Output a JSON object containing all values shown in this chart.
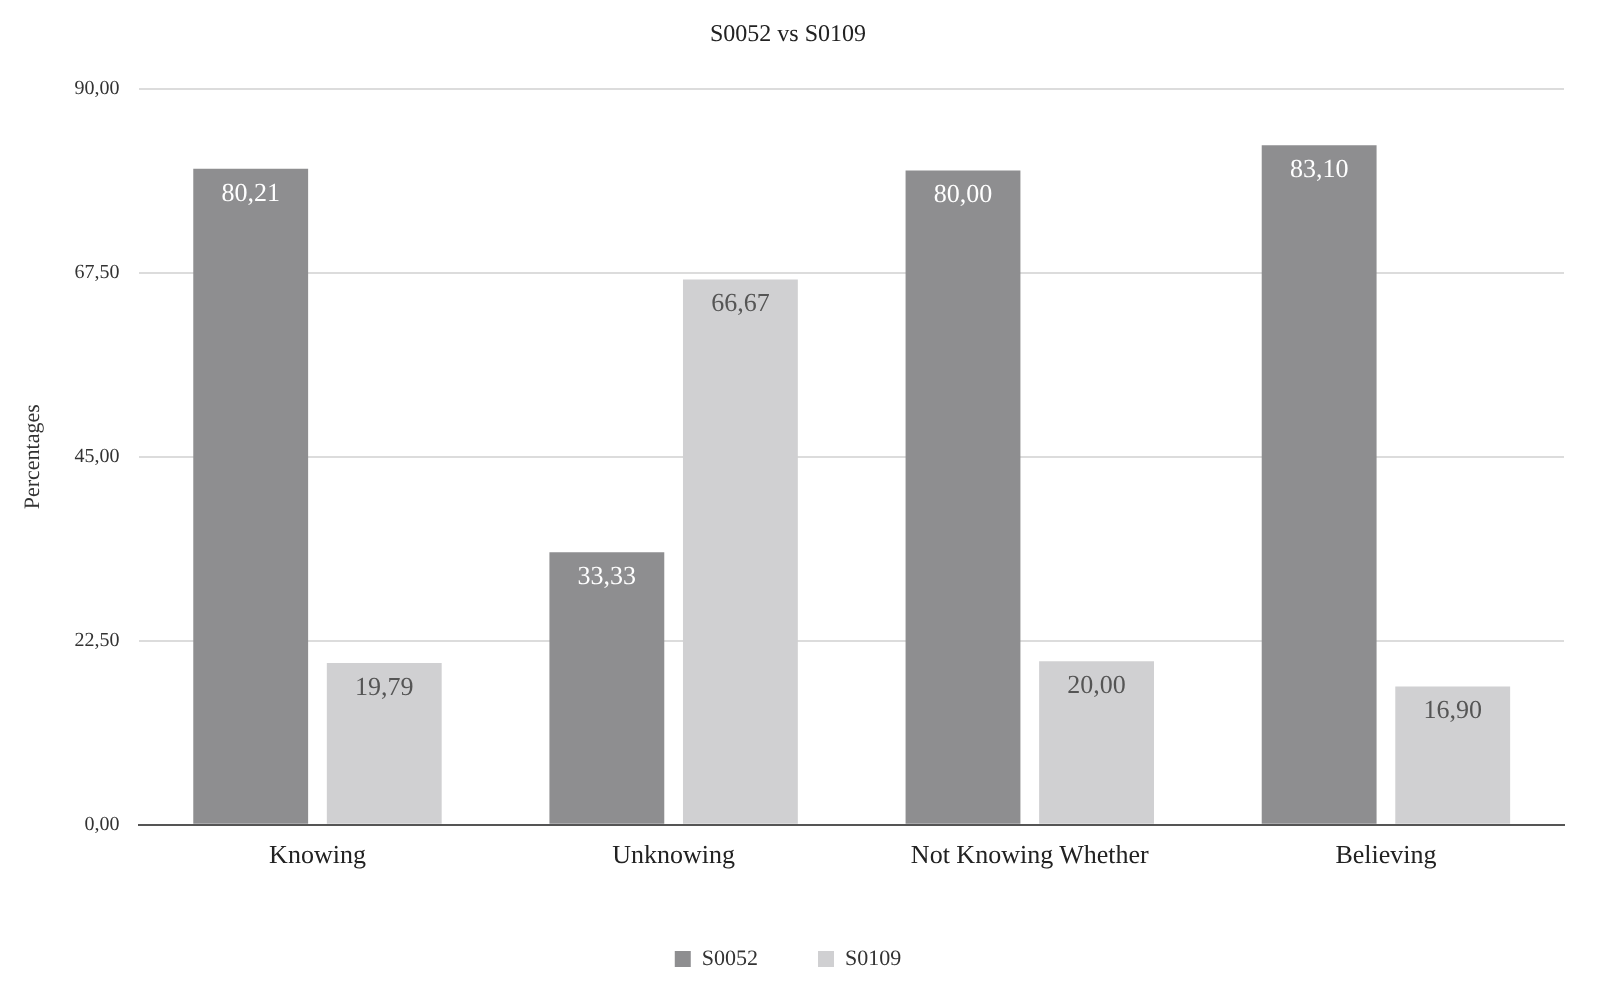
{
  "chart_data": {
    "type": "bar",
    "title": "S0052 vs S0109",
    "ylabel": "Percentages",
    "categories": [
      "Knowing",
      "Unknowing",
      "Not Knowing Whether",
      "Believing"
    ],
    "series": [
      {
        "name": "S0052",
        "color": "#8e8e90",
        "values": [
          80.21,
          33.33,
          80.0,
          83.1
        ],
        "value_labels": [
          "80,21",
          "33,33",
          "80,00",
          "83,10"
        ]
      },
      {
        "name": "S0109",
        "color": "#d0d0d2",
        "values": [
          19.79,
          66.67,
          20.0,
          16.9
        ],
        "value_labels": [
          "19,79",
          "66,67",
          "20,00",
          "16,90"
        ]
      }
    ],
    "ylim": [
      0,
      90
    ],
    "yticks": [
      {
        "value": 0,
        "label": "0,00"
      },
      {
        "value": 22.5,
        "label": "22,50"
      },
      {
        "value": 45,
        "label": "45,00"
      },
      {
        "value": 67.5,
        "label": "67,50"
      },
      {
        "value": 90,
        "label": "90,00"
      }
    ],
    "grid": "y",
    "legend": "bottom"
  }
}
